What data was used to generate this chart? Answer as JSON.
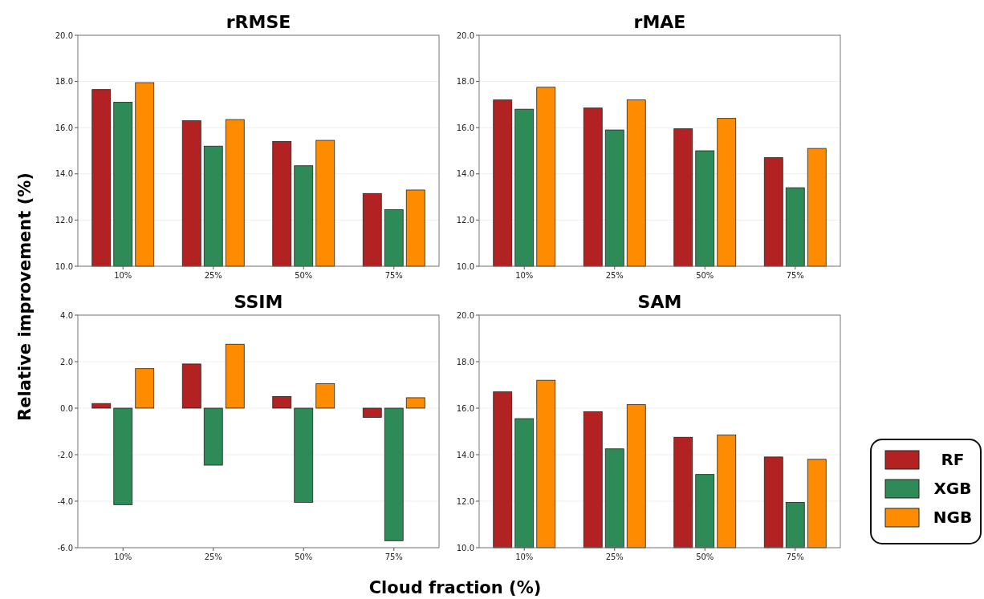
{
  "chart_data": [
    {
      "type": "bar",
      "title": "rRMSE",
      "ylabel": "Relative improvement (%)",
      "categories": [
        "10%",
        "25%",
        "50%",
        "75%"
      ],
      "series": [
        {
          "color": "#b22222",
          "values": [
            17.65,
            16.3,
            15.4,
            13.15
          ]
        },
        {
          "color": "#2e8b57",
          "values": [
            17.1,
            15.2,
            14.35,
            12.45
          ]
        },
        {
          "color": "#ff8c00",
          "values": [
            17.95,
            16.35,
            15.45,
            13.3
          ]
        }
      ],
      "ylim": [
        10,
        20
      ],
      "yticks": [
        {
          "value": 10,
          "label": "10.0"
        },
        {
          "value": 12,
          "label": "12.0"
        },
        {
          "value": 14,
          "label": "14.0"
        },
        {
          "value": 16,
          "label": "16.0"
        },
        {
          "value": 18,
          "label": "18.0"
        },
        {
          "value": 20,
          "label": "20.0"
        }
      ],
      "grid": "y"
    },
    {
      "type": "bar",
      "title": "rMAE",
      "categories": [
        "10%",
        "25%",
        "50%",
        "75%"
      ],
      "series": [
        {
          "color": "#b22222",
          "values": [
            17.2,
            16.85,
            15.95,
            14.7
          ]
        },
        {
          "color": "#2e8b57",
          "values": [
            16.8,
            15.9,
            15.0,
            13.4
          ]
        },
        {
          "color": "#ff8c00",
          "values": [
            17.75,
            17.2,
            16.4,
            15.1
          ]
        }
      ],
      "ylim": [
        10,
        20
      ],
      "yticks": [
        {
          "value": 10,
          "label": "10.0"
        },
        {
          "value": 12,
          "label": "12.0"
        },
        {
          "value": 14,
          "label": "14.0"
        },
        {
          "value": 16,
          "label": "16.0"
        },
        {
          "value": 18,
          "label": "18.0"
        },
        {
          "value": 20,
          "label": "20.0"
        }
      ],
      "grid": "y"
    },
    {
      "type": "bar",
      "title": "SSIM",
      "xlabel": "Cloud fraction (%)",
      "categories": [
        "10%",
        "25%",
        "50%",
        "75%"
      ],
      "series": [
        {
          "color": "#b22222",
          "values": [
            0.2,
            1.9,
            0.5,
            -0.4
          ]
        },
        {
          "color": "#2e8b57",
          "values": [
            -4.15,
            -2.45,
            -4.05,
            -5.7
          ]
        },
        {
          "color": "#ff8c00",
          "values": [
            1.7,
            2.75,
            1.05,
            0.45
          ]
        }
      ],
      "ylim": [
        -6,
        4
      ],
      "yticks": [
        {
          "value": -6,
          "label": "-6.0"
        },
        {
          "value": -4,
          "label": "-4.0"
        },
        {
          "value": -2,
          "label": "-2.0"
        },
        {
          "value": 0,
          "label": "0.0"
        },
        {
          "value": 2,
          "label": "2.0"
        },
        {
          "value": 4,
          "label": "4.0"
        }
      ],
      "grid": "y"
    },
    {
      "type": "bar",
      "title": "SAM",
      "categories": [
        "10%",
        "25%",
        "50%",
        "75%"
      ],
      "series": [
        {
          "name": "RF",
          "color": "#b22222",
          "values": [
            16.7,
            15.85,
            14.75,
            13.9
          ]
        },
        {
          "name": "XGB",
          "color": "#2e8b57",
          "values": [
            15.55,
            14.25,
            13.15,
            11.95
          ]
        },
        {
          "name": "NGB",
          "color": "#ff8c00",
          "values": [
            17.2,
            16.15,
            14.85,
            13.8
          ]
        }
      ],
      "ylim": [
        10,
        20
      ],
      "yticks": [
        {
          "value": 10,
          "label": "10.0"
        },
        {
          "value": 12,
          "label": "12.0"
        },
        {
          "value": 14,
          "label": "14.0"
        },
        {
          "value": 16,
          "label": "16.0"
        },
        {
          "value": 18,
          "label": "18.0"
        },
        {
          "value": 20,
          "label": "20.0"
        }
      ],
      "grid": "y",
      "legend": "right"
    }
  ]
}
